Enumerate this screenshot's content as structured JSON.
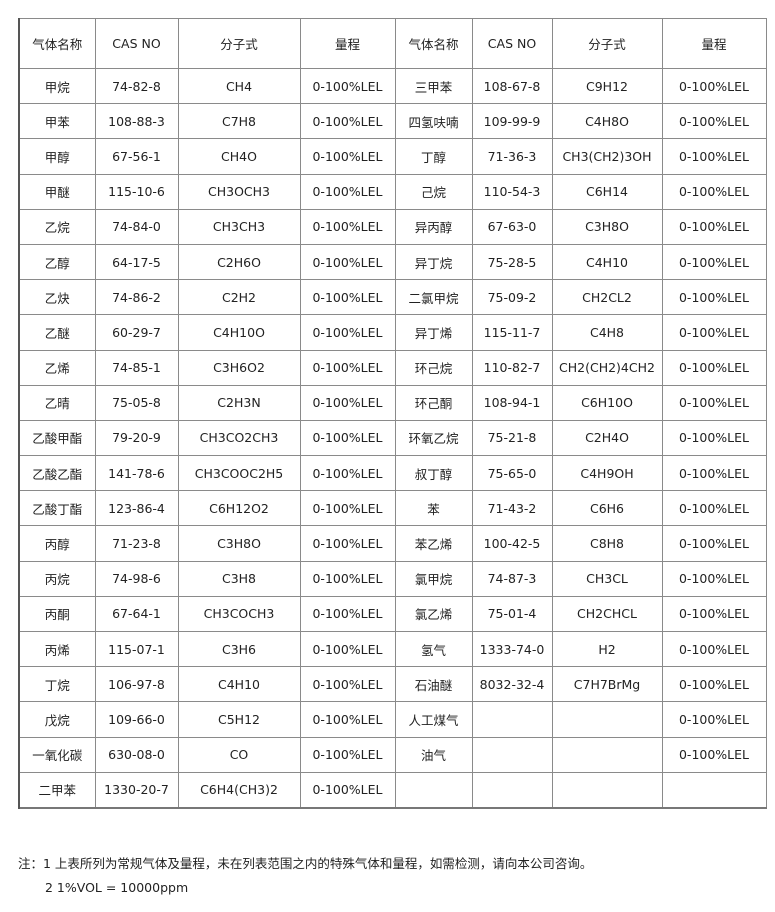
{
  "table": {
    "headers": [
      "气体名称",
      "CAS NO",
      "分子式",
      "量程",
      "气体名称",
      "CAS NO",
      "分子式",
      "量程"
    ],
    "rows": [
      [
        "甲烷",
        "74-82-8",
        "CH4",
        "0-100%LEL",
        "三甲苯",
        "108-67-8",
        "C9H12",
        "0-100%LEL"
      ],
      [
        "甲苯",
        "108-88-3",
        "C7H8",
        "0-100%LEL",
        "四氢呋喃",
        "109-99-9",
        "C4H8O",
        "0-100%LEL"
      ],
      [
        "甲醇",
        "67-56-1",
        "CH4O",
        "0-100%LEL",
        "丁醇",
        "71-36-3",
        "CH3(CH2)3OH",
        "0-100%LEL"
      ],
      [
        "甲醚",
        "115-10-6",
        "CH3OCH3",
        "0-100%LEL",
        "己烷",
        "110-54-3",
        "C6H14",
        "0-100%LEL"
      ],
      [
        "乙烷",
        "74-84-0",
        "CH3CH3",
        "0-100%LEL",
        "异丙醇",
        "67-63-0",
        "C3H8O",
        "0-100%LEL"
      ],
      [
        "乙醇",
        "64-17-5",
        "C2H6O",
        "0-100%LEL",
        "异丁烷",
        "75-28-5",
        "C4H10",
        "0-100%LEL"
      ],
      [
        "乙炔",
        "74-86-2",
        "C2H2",
        "0-100%LEL",
        "二氯甲烷",
        "75-09-2",
        "CH2CL2",
        "0-100%LEL"
      ],
      [
        "乙醚",
        "60-29-7",
        "C4H10O",
        "0-100%LEL",
        "异丁烯",
        "115-11-7",
        "C4H8",
        "0-100%LEL"
      ],
      [
        "乙烯",
        "74-85-1",
        "C3H6O2",
        "0-100%LEL",
        "环己烷",
        "110-82-7",
        "CH2(CH2)4CH2",
        "0-100%LEL"
      ],
      [
        "乙晴",
        "75-05-8",
        "C2H3N",
        "0-100%LEL",
        "环己酮",
        "108-94-1",
        "C6H10O",
        "0-100%LEL"
      ],
      [
        "乙酸甲酯",
        "79-20-9",
        "CH3CO2CH3",
        "0-100%LEL",
        "环氧乙烷",
        "75-21-8",
        "C2H4O",
        "0-100%LEL"
      ],
      [
        "乙酸乙酯",
        "141-78-6",
        "CH3COOC2H5",
        "0-100%LEL",
        "叔丁醇",
        "75-65-0",
        "C4H9OH",
        "0-100%LEL"
      ],
      [
        "乙酸丁酯",
        "123-86-4",
        "C6H12O2",
        "0-100%LEL",
        "苯",
        "71-43-2",
        "C6H6",
        "0-100%LEL"
      ],
      [
        "丙醇",
        "71-23-8",
        "C3H8O",
        "0-100%LEL",
        "苯乙烯",
        "100-42-5",
        "C8H8",
        "0-100%LEL"
      ],
      [
        "丙烷",
        "74-98-6",
        "C3H8",
        "0-100%LEL",
        "氯甲烷",
        "74-87-3",
        "CH3CL",
        "0-100%LEL"
      ],
      [
        "丙酮",
        "67-64-1",
        "CH3COCH3",
        "0-100%LEL",
        "氯乙烯",
        "75-01-4",
        "CH2CHCL",
        "0-100%LEL"
      ],
      [
        "丙烯",
        "115-07-1",
        "C3H6",
        "0-100%LEL",
        "氢气",
        "1333-74-0",
        "H2",
        "0-100%LEL"
      ],
      [
        "丁烷",
        "106-97-8",
        "C4H10",
        "0-100%LEL",
        "石油醚",
        "8032-32-4",
        "C7H7BrMg",
        "0-100%LEL"
      ],
      [
        "戊烷",
        "109-66-0",
        "C5H12",
        "0-100%LEL",
        "人工煤气",
        "",
        "",
        "0-100%LEL"
      ],
      [
        "一氧化碳",
        "630-08-0",
        "CO",
        "0-100%LEL",
        "油气",
        "",
        "",
        "0-100%LEL"
      ],
      [
        "二甲苯",
        "1330-20-7",
        "C6H4(CH3)2",
        "0-100%LEL",
        "",
        "",
        "",
        ""
      ]
    ]
  },
  "notes": {
    "note1": "注：1  上表所列为常规气体及量程，未在列表范围之内的特殊气体和量程，如需检测，请向本公司咨询。",
    "note2": "2  1%VOL = 10000ppm"
  }
}
